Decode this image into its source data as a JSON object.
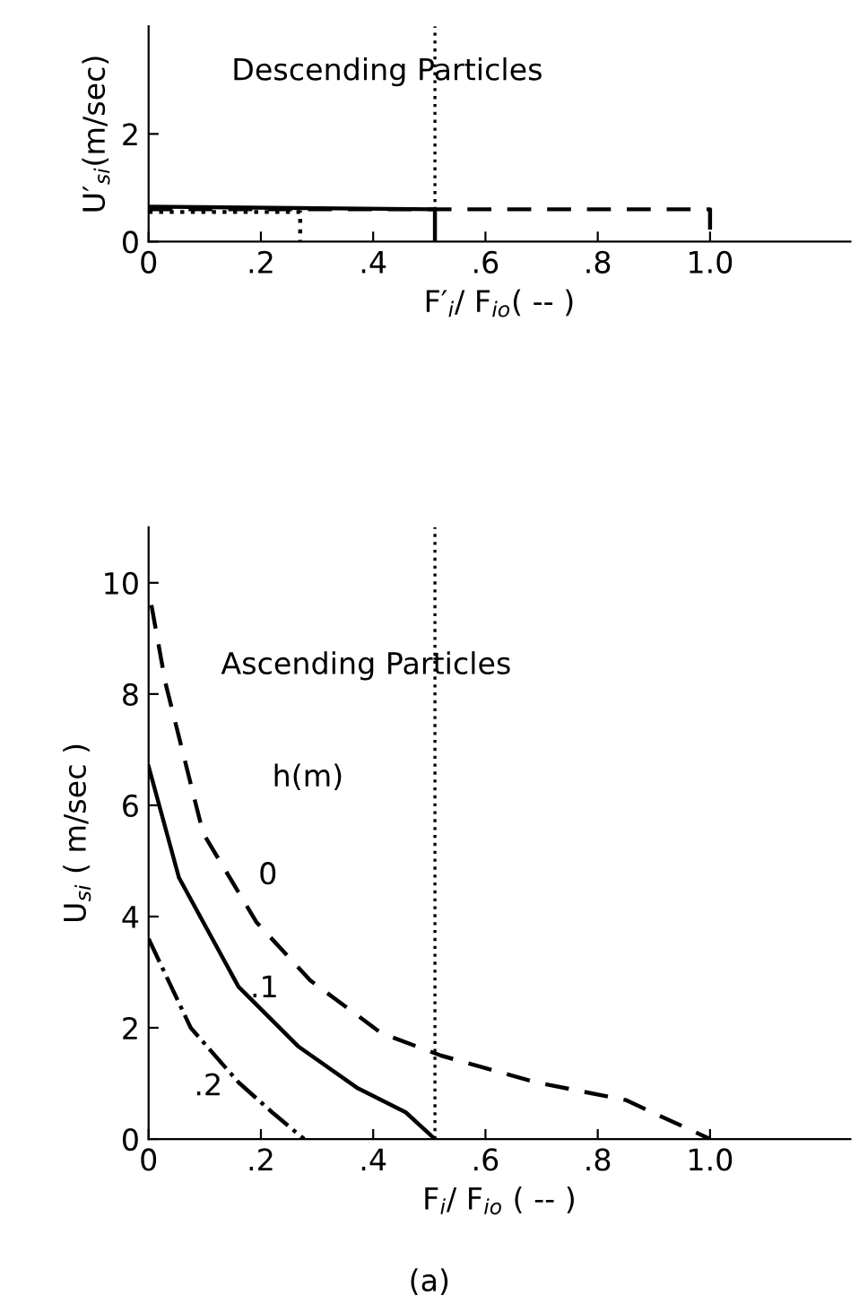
{
  "chart_data": [
    {
      "type": "line",
      "title": "Descending Particles",
      "xlabel": "F′$_{i}$/ F$_{io}$( -- )",
      "ylabel": "U′$_{si}$(m/sec)",
      "xlim": [
        0,
        1.25
      ],
      "xticks": [
        0,
        {
          "value": 0.2,
          "label": ".2"
        },
        {
          "value": 0.4,
          "label": ".4"
        },
        {
          "value": 0.6,
          "label": ".6"
        },
        {
          "value": 0.8,
          "label": ".8"
        },
        {
          "value": 1.0,
          "label": "1.0"
        }
      ],
      "ylim": [
        0,
        4
      ],
      "yticks": [
        0,
        2
      ],
      "series": [
        {
          "color": "#000000",
          "line_style": "dashed",
          "x": [
            0,
            1.0,
            1.0
          ],
          "values": [
            0.6,
            0.6,
            0
          ]
        },
        {
          "color": "#000000",
          "line_style": "solid",
          "x": [
            0,
            0.51,
            0.51
          ],
          "values": [
            0.65,
            0.6,
            0
          ]
        },
        {
          "color": "#000000",
          "line_style": "dotted",
          "x": [
            0,
            0.27,
            0.27
          ],
          "values": [
            0.55,
            0.55,
            0
          ]
        }
      ],
      "ref_lines": [
        {
          "axis": "x",
          "value": 0.51,
          "line_style": "dotted",
          "color": "#000000"
        }
      ]
    },
    {
      "type": "line",
      "title": "Ascending Particles",
      "xlabel": "F$_{i}$/ F$_{io}$ ( -- )",
      "ylabel": "U$_{si}$ ( m/sec )",
      "xlim": [
        0,
        1.25
      ],
      "xticks": [
        0,
        {
          "value": 0.2,
          "label": ".2"
        },
        {
          "value": 0.4,
          "label": ".4"
        },
        {
          "value": 0.6,
          "label": ".6"
        },
        {
          "value": 0.8,
          "label": ".8"
        },
        {
          "value": 1.0,
          "label": "1.0"
        }
      ],
      "ylim": [
        0,
        11
      ],
      "yticks": [
        0,
        2,
        4,
        6,
        8,
        10
      ],
      "series": [
        {
          "color": "#000000",
          "line_style": "dashed",
          "x": [
            0.005,
            0.03,
            0.097,
            0.192,
            0.288,
            0.415,
            0.521,
            0.69,
            0.85,
            1.0
          ],
          "values": [
            9.6,
            8.2,
            5.5,
            3.9,
            2.85,
            1.9,
            1.5,
            1.02,
            0.7,
            0
          ]
        },
        {
          "color": "#000000",
          "line_style": "solid",
          "x": [
            0,
            0.054,
            0.16,
            0.266,
            0.373,
            0.458,
            0.51
          ],
          "values": [
            6.7,
            4.7,
            2.74,
            1.67,
            0.91,
            0.48,
            0
          ]
        },
        {
          "color": "#000000",
          "line_style": "dashdot",
          "x": [
            0,
            0.075,
            0.16,
            0.22,
            0.277
          ],
          "values": [
            3.6,
            2.0,
            1.02,
            0.48,
            0
          ]
        }
      ],
      "ref_lines": [
        {
          "axis": "x",
          "value": 0.51,
          "line_style": "dotted",
          "color": "#000000"
        }
      ],
      "annotations": [
        "h(m)",
        "0",
        ".1",
        ".2",
        "(a)"
      ]
    }
  ]
}
